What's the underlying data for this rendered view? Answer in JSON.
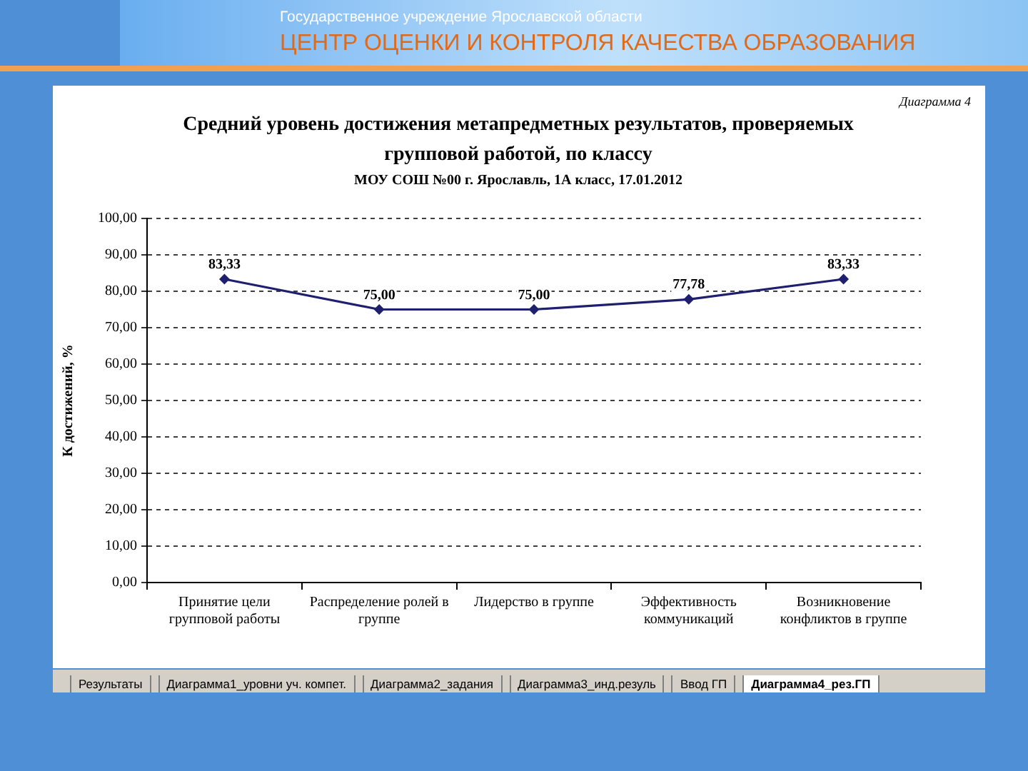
{
  "chart_data": {
    "type": "line",
    "title": "Средний уровень достижения метапредметных результатов, проверяемых групповой работой, по классу",
    "subtitle": "МОУ СОШ №00 г. Ярославль, 1А класс, 17.01.2012",
    "ylabel": "К достижений, %",
    "categories": [
      "Принятие цели групповой работы",
      "Распределение ролей в группе",
      "Лидерство в группе",
      "Эффективность коммуникаций",
      "Возникновение конфликтов в группе"
    ],
    "values": [
      83.33,
      75,
      75,
      77.78,
      83.33
    ],
    "value_labels": [
      "83,33",
      "75,00",
      "75,00",
      "77,78",
      "83,33"
    ],
    "color": "#1f1f70",
    "ylim": [
      0,
      100
    ],
    "yticks": [
      {
        "value": 0,
        "label": "0,00"
      },
      {
        "value": 10,
        "label": "10,00"
      },
      {
        "value": 20,
        "label": "20,00"
      },
      {
        "value": 30,
        "label": "30,00"
      },
      {
        "value": 40,
        "label": "40,00"
      },
      {
        "value": 50,
        "label": "50,00"
      },
      {
        "value": 60,
        "label": "60,00"
      },
      {
        "value": 70,
        "label": "70,00"
      },
      {
        "value": 80,
        "label": "80,00"
      },
      {
        "value": 90,
        "label": "90,00"
      },
      {
        "value": 100,
        "label": "100,00"
      }
    ],
    "grid": "y",
    "marker": "diamond",
    "annotations": [
      "Государственное учреждение Ярославской области",
      "ЦЕНТР ОЦЕНКИ И КОНТРОЛЯ КАЧЕСТВА ОБРАЗОВАНИЯ",
      "Диаграмма 4",
      "Результаты",
      "Диаграмма1_уровни уч. компет.",
      "Диаграмма2_задания",
      "Диаграмма3_инд.резуль",
      "Ввод ГП",
      "Диаграмма4_рез.ГП"
    ]
  }
}
